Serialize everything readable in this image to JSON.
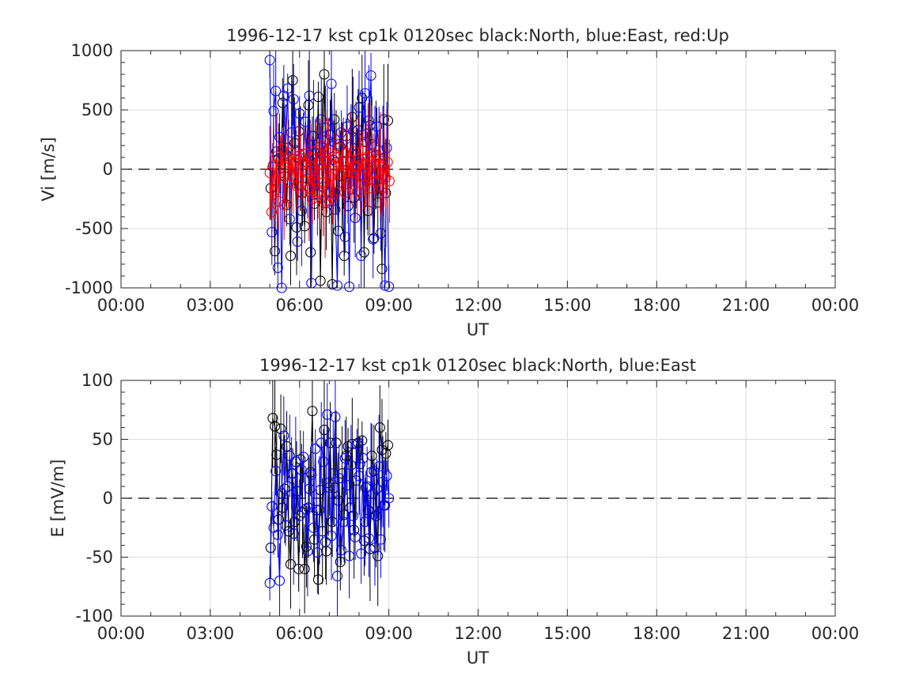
{
  "chart_data": [
    {
      "type": "scatter",
      "title": "1996-12-17 kst cp1k 0120sec black:North, blue:East, red:Up",
      "xlabel": "UT",
      "ylabel": "Vi [m/s]",
      "xlim": [
        0,
        24
      ],
      "ylim": [
        -1000,
        1000
      ],
      "xticks": [
        0,
        3,
        6,
        9,
        12,
        15,
        18,
        21,
        24
      ],
      "xtick_labels": [
        "00:00",
        "03:00",
        "06:00",
        "09:00",
        "12:00",
        "15:00",
        "18:00",
        "21:00",
        "00:00"
      ],
      "yticks": [
        -1000,
        -500,
        0,
        500,
        1000
      ],
      "ytick_labels": [
        "-1000",
        "-500",
        "0",
        "500",
        "1000"
      ],
      "grid": true,
      "zero_line": true,
      "series": [
        {
          "color": "#000000",
          "x": [
            5.03,
            5.1,
            5.17,
            5.23,
            5.3,
            5.37,
            5.43,
            5.5,
            5.57,
            5.63,
            5.7,
            5.77,
            5.83,
            5.9,
            5.97,
            6.03,
            6.1,
            6.17,
            6.23,
            6.3,
            6.37,
            6.43,
            6.5,
            6.57,
            6.63,
            6.7,
            6.77,
            6.83,
            6.9,
            6.97,
            7.03,
            7.1,
            7.17,
            7.23,
            7.3,
            7.37,
            7.43,
            7.5,
            7.57,
            7.63,
            7.7,
            7.77,
            7.83,
            7.9,
            7.97,
            8.03,
            8.1,
            8.17,
            8.23,
            8.3,
            8.37,
            8.43,
            8.5,
            8.57,
            8.63,
            8.7,
            8.77,
            8.83,
            8.9,
            8.97
          ],
          "y": [
            -160,
            20,
            -690,
            150,
            90,
            -30,
            560,
            -60,
            -300,
            180,
            -730,
            750,
            220,
            -490,
            320,
            90,
            -200,
            -480,
            60,
            540,
            -700,
            280,
            -290,
            60,
            610,
            -940,
            130,
            800,
            -360,
            170,
            290,
            -970,
            420,
            60,
            -520,
            190,
            -60,
            -730,
            280,
            -310,
            60,
            440,
            -240,
            120,
            330,
            -50,
            600,
            -700,
            230,
            -350,
            370,
            210,
            -580,
            120,
            -280,
            50,
            -840,
            420,
            -200,
            410
          ]
        },
        {
          "color": "#0000ff",
          "x": [
            5.0,
            5.07,
            5.13,
            5.2,
            5.27,
            5.33,
            5.4,
            5.47,
            5.53,
            5.6,
            5.67,
            5.73,
            5.8,
            5.87,
            5.93,
            6.0,
            6.07,
            6.13,
            6.2,
            6.27,
            6.33,
            6.4,
            6.47,
            6.53,
            6.6,
            6.67,
            6.73,
            6.8,
            6.87,
            6.93,
            7.0,
            7.07,
            7.13,
            7.2,
            7.27,
            7.33,
            7.4,
            7.47,
            7.53,
            7.6,
            7.67,
            7.73,
            7.8,
            7.87,
            7.93,
            8.0,
            8.07,
            8.13,
            8.2,
            8.27,
            8.33,
            8.4,
            8.47,
            8.53,
            8.6,
            8.67,
            8.73,
            8.8,
            8.87,
            8.93,
            9.0
          ],
          "y": [
            920,
            -530,
            490,
            660,
            -830,
            270,
            -1000,
            620,
            130,
            680,
            -420,
            310,
            590,
            160,
            -610,
            470,
            -350,
            130,
            400,
            -80,
            620,
            -960,
            280,
            130,
            -210,
            80,
            420,
            -150,
            350,
            250,
            -270,
            720,
            80,
            -340,
            -980,
            210,
            310,
            70,
            -570,
            360,
            -990,
            190,
            320,
            -410,
            70,
            520,
            -730,
            290,
            640,
            -100,
            410,
            790,
            -590,
            190,
            360,
            160,
            -540,
            70,
            -980,
            180,
            -990
          ]
        },
        {
          "color": "#ff0000",
          "x": [
            5.0,
            5.06,
            5.12,
            5.18,
            5.24,
            5.3,
            5.36,
            5.42,
            5.48,
            5.54,
            5.6,
            5.66,
            5.72,
            5.78,
            5.84,
            5.9,
            5.96,
            6.02,
            6.08,
            6.14,
            6.2,
            6.26,
            6.32,
            6.38,
            6.44,
            6.5,
            6.56,
            6.62,
            6.68,
            6.74,
            6.8,
            6.86,
            6.92,
            6.98,
            7.04,
            7.1,
            7.16,
            7.22,
            7.28,
            7.34,
            7.4,
            7.46,
            7.52,
            7.58,
            7.64,
            7.7,
            7.76,
            7.82,
            7.88,
            7.94,
            8.0,
            8.06,
            8.12,
            8.18,
            8.24,
            8.3,
            8.36,
            8.42,
            8.48,
            8.54,
            8.6,
            8.66,
            8.72,
            8.78,
            8.84,
            8.9,
            8.96,
            9.02
          ],
          "y": [
            -30,
            -360,
            40,
            -180,
            110,
            -270,
            80,
            170,
            -300,
            60,
            90,
            -110,
            140,
            -60,
            50,
            -140,
            80,
            120,
            -200,
            60,
            130,
            -30,
            -160,
            100,
            -250,
            -90,
            160,
            -190,
            40,
            200,
            -110,
            -270,
            60,
            140,
            -60,
            -240,
            30,
            100,
            -120,
            180,
            -30,
            60,
            -200,
            140,
            -20,
            80,
            -100,
            150,
            30,
            -190,
            90,
            -60,
            160,
            -130,
            40,
            110,
            -160,
            70,
            130,
            -30,
            -100,
            100,
            40,
            -160,
            20,
            -70,
            60,
            -100
          ]
        }
      ]
    },
    {
      "type": "scatter",
      "title": "1996-12-17 kst cp1k 0120sec black:North, blue:East",
      "xlabel": "UT",
      "ylabel": "E [mV/m]",
      "xlim": [
        0,
        24
      ],
      "ylim": [
        -100,
        100
      ],
      "xticks": [
        0,
        3,
        6,
        9,
        12,
        15,
        18,
        21,
        24
      ],
      "xtick_labels": [
        "00:00",
        "03:00",
        "06:00",
        "09:00",
        "12:00",
        "15:00",
        "18:00",
        "21:00",
        "00:00"
      ],
      "yticks": [
        -100,
        -50,
        0,
        50,
        100
      ],
      "ytick_labels": [
        "-100",
        "-50",
        "0",
        "50",
        "100"
      ],
      "grid": true,
      "zero_line": true,
      "series": [
        {
          "color": "#000000",
          "x": [
            5.03,
            5.1,
            5.17,
            5.23,
            5.3,
            5.37,
            5.43,
            5.5,
            5.57,
            5.63,
            5.7,
            5.77,
            5.83,
            5.9,
            5.97,
            6.03,
            6.1,
            6.17,
            6.23,
            6.3,
            6.37,
            6.43,
            6.5,
            6.57,
            6.63,
            6.7,
            6.77,
            6.83,
            6.9,
            6.97,
            7.03,
            7.1,
            7.17,
            7.23,
            7.3,
            7.37,
            7.43,
            7.5,
            7.57,
            7.63,
            7.7,
            7.77,
            7.83,
            7.9,
            7.97,
            8.03,
            8.1,
            8.17,
            8.23,
            8.3,
            8.37,
            8.43,
            8.5,
            8.57,
            8.63,
            8.7,
            8.77,
            8.83,
            8.9,
            8.97
          ],
          "y": [
            -42,
            68,
            61,
            37,
            -18,
            59,
            -8,
            8,
            44,
            -28,
            -56,
            21,
            -20,
            6,
            -60,
            33,
            -12,
            -60,
            -41,
            -8,
            22,
            74,
            -35,
            -10,
            -69,
            7,
            -28,
            58,
            -45,
            13,
            47,
            -20,
            9,
            47,
            -2,
            -54,
            21,
            -14,
            36,
            44,
            -8,
            46,
            -27,
            15,
            47,
            29,
            49,
            -36,
            9,
            -10,
            -43,
            36,
            23,
            -15,
            -49,
            60,
            41,
            -6,
            38,
            45
          ]
        },
        {
          "color": "#0000ff",
          "x": [
            5.0,
            5.07,
            5.13,
            5.2,
            5.27,
            5.33,
            5.4,
            5.47,
            5.53,
            5.6,
            5.67,
            5.73,
            5.8,
            5.87,
            5.93,
            6.0,
            6.07,
            6.13,
            6.2,
            6.27,
            6.33,
            6.4,
            6.47,
            6.53,
            6.6,
            6.67,
            6.73,
            6.8,
            6.87,
            6.93,
            7.0,
            7.07,
            7.13,
            7.2,
            7.27,
            7.33,
            7.4,
            7.47,
            7.53,
            7.6,
            7.67,
            7.73,
            7.8,
            7.87,
            7.93,
            8.0,
            8.07,
            8.13,
            8.2,
            8.27,
            8.33,
            8.4,
            8.47,
            8.53,
            8.6,
            8.67,
            8.73,
            8.8,
            8.87,
            8.93,
            9.0
          ],
          "y": [
            -72,
            -7,
            -25,
            23,
            -31,
            -70,
            4,
            53,
            -23,
            10,
            36,
            21,
            -30,
            31,
            6,
            -15,
            24,
            35,
            -9,
            -45,
            8,
            20,
            -25,
            42,
            -46,
            -10,
            47,
            31,
            -37,
            71,
            9,
            -32,
            21,
            69,
            -66,
            17,
            -44,
            -20,
            34,
            11,
            -49,
            28,
            -15,
            -33,
            46,
            19,
            -47,
            34,
            -20,
            10,
            -34,
            22,
            4,
            -42,
            8,
            27,
            -35,
            14,
            -6,
            19,
            0
          ]
        }
      ]
    }
  ]
}
